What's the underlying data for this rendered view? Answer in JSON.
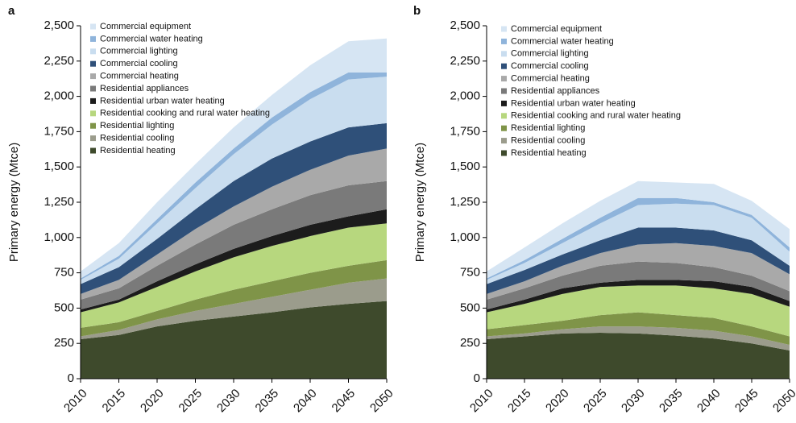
{
  "chart_data": [
    {
      "type": "area",
      "panel": "a",
      "y_label": "Primary energy (Mtce)",
      "x": [
        2010,
        2015,
        2020,
        2025,
        2030,
        2035,
        2040,
        2045,
        2050
      ],
      "xlim": [
        2010,
        2050
      ],
      "xticks": [
        2010,
        2015,
        2020,
        2025,
        2030,
        2035,
        2040,
        2045,
        2050
      ],
      "ylim": [
        0,
        2500
      ],
      "yticks": [
        0,
        250,
        500,
        750,
        {
          "value": 1000,
          "label": "1,000"
        },
        {
          "value": 1250,
          "label": "1,250"
        },
        {
          "value": 1500,
          "label": "1,500"
        },
        {
          "value": 1750,
          "label": "1,750"
        },
        {
          "value": 2000,
          "label": "2,000"
        },
        {
          "value": 2250,
          "label": "2,250"
        },
        {
          "value": 2500,
          "label": "2,500"
        }
      ],
      "series": [
        {
          "name": "Residential heating",
          "color": "#3e4a2c",
          "values": [
            280,
            310,
            370,
            410,
            440,
            470,
            505,
            530,
            550
          ]
        },
        {
          "name": "Residential cooling",
          "color": "#9b9c8c",
          "values": [
            20,
            35,
            50,
            70,
            90,
            110,
            125,
            150,
            160
          ]
        },
        {
          "name": "Residential lighting",
          "color": "#7f9448",
          "values": [
            60,
            55,
            60,
            80,
            100,
            110,
            120,
            120,
            130
          ]
        },
        {
          "name": "Residential cooking and rural water heating",
          "color": "#b7d77e",
          "values": [
            110,
            140,
            170,
            200,
            230,
            250,
            260,
            270,
            260
          ]
        },
        {
          "name": "Residential urban water heating",
          "color": "#1c1c1c",
          "values": [
            20,
            20,
            40,
            50,
            60,
            70,
            80,
            80,
            100
          ]
        },
        {
          "name": "Residential appliances",
          "color": "#7a7a7a",
          "values": [
            70,
            80,
            110,
            140,
            170,
            190,
            210,
            220,
            200
          ]
        },
        {
          "name": "Commercial heating",
          "color": "#a9a9a9",
          "values": [
            40,
            60,
            80,
            110,
            130,
            160,
            180,
            210,
            230
          ]
        },
        {
          "name": "Commercial cooling",
          "color": "#2f5079",
          "values": [
            70,
            90,
            110,
            140,
            180,
            200,
            200,
            200,
            180
          ]
        },
        {
          "name": "Commercial lighting",
          "color": "#c9ddef",
          "values": [
            30,
            60,
            110,
            150,
            190,
            240,
            300,
            340,
            330
          ]
        },
        {
          "name": "Commercial water heating",
          "color": "#8fb4db",
          "values": [
            10,
            20,
            30,
            40,
            40,
            50,
            50,
            50,
            30
          ]
        },
        {
          "name": "Commercial equipment",
          "color": "#d6e5f3",
          "values": [
            50,
            90,
            120,
            130,
            150,
            160,
            190,
            220,
            240
          ]
        }
      ]
    },
    {
      "type": "area",
      "panel": "b",
      "y_label": "Primary energy (Mtce)",
      "x": [
        2010,
        2015,
        2020,
        2025,
        2030,
        2035,
        2040,
        2045,
        2050
      ],
      "xlim": [
        2010,
        2050
      ],
      "xticks": [
        2010,
        2015,
        2020,
        2025,
        2030,
        2035,
        2040,
        2045,
        2050
      ],
      "ylim": [
        0,
        2500
      ],
      "yticks": [
        0,
        250,
        500,
        750,
        {
          "value": 1000,
          "label": "1,000"
        },
        {
          "value": 1250,
          "label": "1,250"
        },
        {
          "value": 1500,
          "label": "1,500"
        },
        {
          "value": 1750,
          "label": "1,750"
        },
        {
          "value": 2000,
          "label": "2,000"
        },
        {
          "value": 2250,
          "label": "2,250"
        },
        {
          "value": 2500,
          "label": "2,500"
        }
      ],
      "series": [
        {
          "name": "Residential heating",
          "color": "#3e4a2c",
          "values": [
            280,
            300,
            320,
            325,
            320,
            305,
            285,
            250,
            200
          ]
        },
        {
          "name": "Residential cooling",
          "color": "#9b9c8c",
          "values": [
            20,
            20,
            30,
            45,
            50,
            55,
            55,
            50,
            40
          ]
        },
        {
          "name": "Residential lighting",
          "color": "#7f9448",
          "values": [
            50,
            60,
            60,
            80,
            100,
            90,
            90,
            70,
            60
          ]
        },
        {
          "name": "Residential cooking and rural water heating",
          "color": "#b7d77e",
          "values": [
            120,
            150,
            190,
            200,
            190,
            210,
            210,
            230,
            210
          ]
        },
        {
          "name": "Residential urban water heating",
          "color": "#1c1c1c",
          "values": [
            20,
            30,
            40,
            30,
            40,
            40,
            50,
            50,
            40
          ]
        },
        {
          "name": "Residential appliances",
          "color": "#7a7a7a",
          "values": [
            70,
            80,
            90,
            120,
            130,
            120,
            100,
            80,
            70
          ]
        },
        {
          "name": "Commercial heating",
          "color": "#a9a9a9",
          "values": [
            40,
            50,
            70,
            90,
            120,
            140,
            150,
            160,
            120
          ]
        },
        {
          "name": "Commercial cooling",
          "color": "#2f5079",
          "values": [
            70,
            80,
            80,
            90,
            120,
            110,
            110,
            90,
            60
          ]
        },
        {
          "name": "Commercial lighting",
          "color": "#c9ddef",
          "values": [
            30,
            50,
            80,
            120,
            160,
            170,
            180,
            160,
            100
          ]
        },
        {
          "name": "Commercial water heating",
          "color": "#8fb4db",
          "values": [
            10,
            20,
            30,
            40,
            50,
            40,
            20,
            20,
            30
          ]
        },
        {
          "name": "Commercial equipment",
          "color": "#d6e5f3",
          "values": [
            50,
            90,
            110,
            120,
            120,
            110,
            130,
            100,
            130
          ]
        }
      ]
    }
  ]
}
